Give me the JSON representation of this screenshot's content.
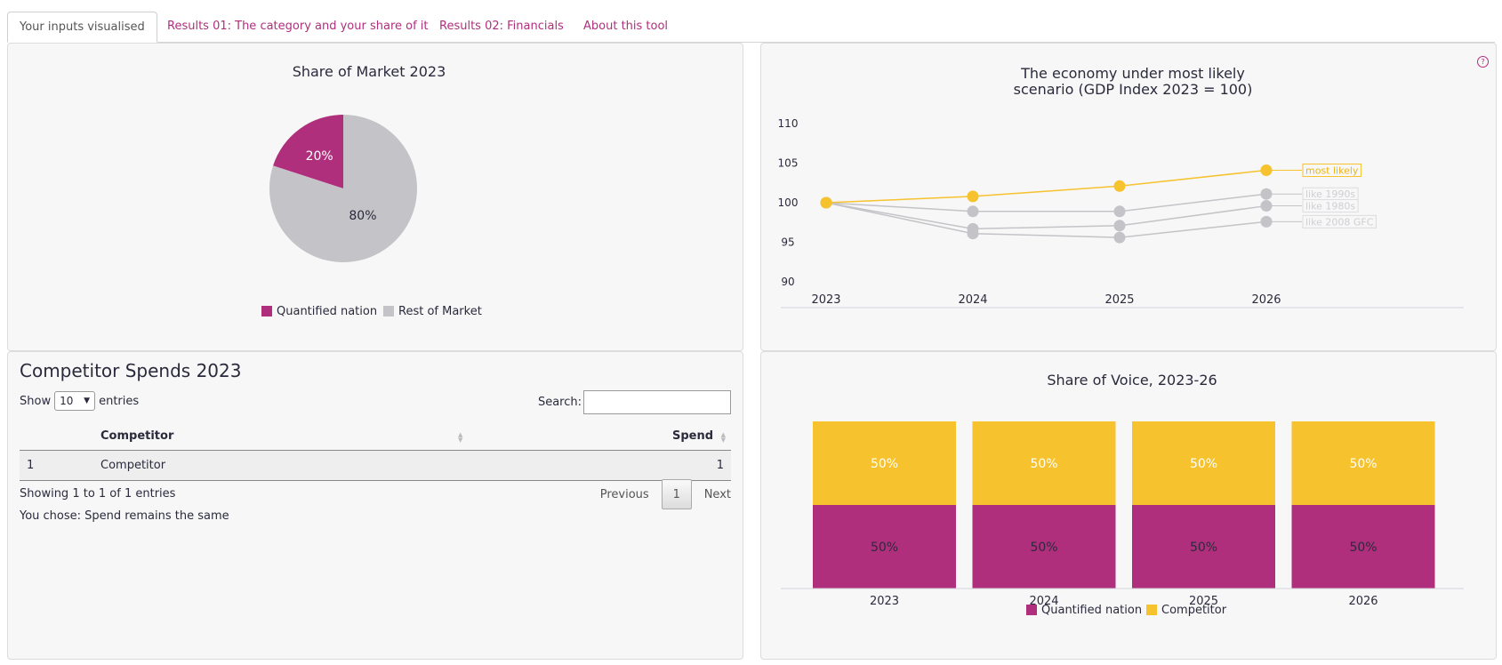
{
  "tabs": [
    {
      "label": "Your inputs visualised",
      "active": true
    },
    {
      "label": "Results 01: The category and your share of it"
    },
    {
      "label": "Results 02: Financials"
    },
    {
      "label": "About this tool"
    }
  ],
  "pie_panel": {
    "title": "Share of  Market 2023",
    "slice_labels": [
      "20%",
      "80%"
    ],
    "legend": [
      "Quantified nation",
      "Rest of Market"
    ]
  },
  "line_panel": {
    "title_line1": "The economy under most likely",
    "title_line2": "scenario (GDP Index 2023 = 100)",
    "y_ticks": [
      "110",
      "105",
      "100",
      "95",
      "90"
    ],
    "x_ticks": [
      "2023",
      "2024",
      "2025",
      "2026"
    ],
    "series_labels": [
      "most likely",
      "like 1990s",
      "like 1980s",
      "like 2008 GFC"
    ],
    "help_icon": "?"
  },
  "table_panel": {
    "title": "Competitor Spends 2023",
    "show_label": "Show",
    "entries_value": "10",
    "entries_label": "entries",
    "search_label": "Search:",
    "columns": [
      "Competitor",
      "Spend"
    ],
    "rows": [
      [
        "1",
        "Competitor",
        "1"
      ]
    ],
    "info": "Showing 1 to 1 of 1 entries",
    "previous": "Previous",
    "page": "1",
    "next": "Next",
    "choice": "You chose: Spend remains the same"
  },
  "bar_panel": {
    "title": "Share of Voice, 2023-26",
    "legend": [
      "Quantified nation",
      "Competitor"
    ],
    "bar_labels": [
      "50%",
      "50%"
    ]
  },
  "colors": {
    "accent": "#b02f7c",
    "yellow": "#f6c22e",
    "grey": "#c4c4c8",
    "text": "#2a2a3c"
  },
  "chart_data": [
    {
      "type": "pie",
      "title": "Share of  Market 2023",
      "categories": [
        "Quantified nation",
        "Rest of Market"
      ],
      "values": [
        20,
        80
      ]
    },
    {
      "type": "line",
      "title": "The economy under most likely scenario (GDP Index 2023 = 100)",
      "x": [
        2023,
        2024,
        2025,
        2026
      ],
      "ylim": [
        90,
        110
      ],
      "series": [
        {
          "name": "most likely",
          "values": [
            100,
            100.8,
            102.1,
            104.1
          ]
        },
        {
          "name": "like 1990s",
          "values": [
            100,
            98.9,
            98.9,
            101.1
          ]
        },
        {
          "name": "like 1980s",
          "values": [
            100,
            96.7,
            97.1,
            99.6
          ]
        },
        {
          "name": "like 2008 GFC",
          "values": [
            100,
            96.1,
            95.6,
            97.6
          ]
        }
      ]
    },
    {
      "type": "bar",
      "stacked": true,
      "title": "Share of Voice, 2023-26",
      "categories": [
        "2023",
        "2024",
        "2025",
        "2026"
      ],
      "ylim": [
        0,
        100
      ],
      "series": [
        {
          "name": "Quantified nation",
          "values": [
            50,
            50,
            50,
            50
          ]
        },
        {
          "name": "Competitor",
          "values": [
            50,
            50,
            50,
            50
          ]
        }
      ]
    }
  ]
}
